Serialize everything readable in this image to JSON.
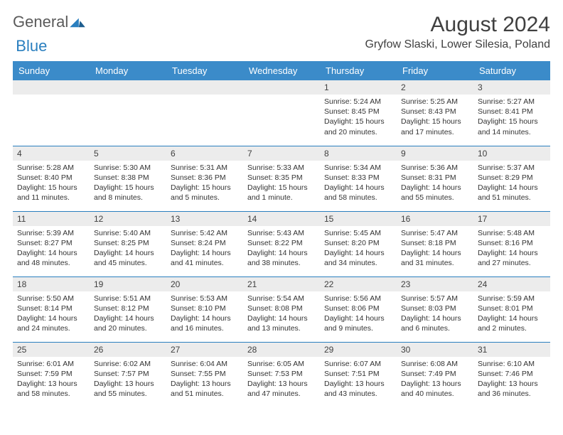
{
  "logo": {
    "general": "General",
    "blue": "Blue"
  },
  "title": "August 2024",
  "location": "Gryfow Slaski, Lower Silesia, Poland",
  "colors": {
    "header_bg": "#3b8bc9",
    "header_text": "#ffffff",
    "daynum_bg": "#ececec",
    "row_border": "#2a7fbf",
    "title_text": "#404040",
    "body_text": "#333333",
    "logo_general": "#5a5a5a",
    "logo_blue": "#2a7fbf"
  },
  "weekdays": [
    "Sunday",
    "Monday",
    "Tuesday",
    "Wednesday",
    "Thursday",
    "Friday",
    "Saturday"
  ],
  "weeks": [
    [
      {
        "day": "",
        "sunrise": "",
        "sunset": "",
        "daylight": ""
      },
      {
        "day": "",
        "sunrise": "",
        "sunset": "",
        "daylight": ""
      },
      {
        "day": "",
        "sunrise": "",
        "sunset": "",
        "daylight": ""
      },
      {
        "day": "",
        "sunrise": "",
        "sunset": "",
        "daylight": ""
      },
      {
        "day": "1",
        "sunrise": "Sunrise: 5:24 AM",
        "sunset": "Sunset: 8:45 PM",
        "daylight": "Daylight: 15 hours and 20 minutes."
      },
      {
        "day": "2",
        "sunrise": "Sunrise: 5:25 AM",
        "sunset": "Sunset: 8:43 PM",
        "daylight": "Daylight: 15 hours and 17 minutes."
      },
      {
        "day": "3",
        "sunrise": "Sunrise: 5:27 AM",
        "sunset": "Sunset: 8:41 PM",
        "daylight": "Daylight: 15 hours and 14 minutes."
      }
    ],
    [
      {
        "day": "4",
        "sunrise": "Sunrise: 5:28 AM",
        "sunset": "Sunset: 8:40 PM",
        "daylight": "Daylight: 15 hours and 11 minutes."
      },
      {
        "day": "5",
        "sunrise": "Sunrise: 5:30 AM",
        "sunset": "Sunset: 8:38 PM",
        "daylight": "Daylight: 15 hours and 8 minutes."
      },
      {
        "day": "6",
        "sunrise": "Sunrise: 5:31 AM",
        "sunset": "Sunset: 8:36 PM",
        "daylight": "Daylight: 15 hours and 5 minutes."
      },
      {
        "day": "7",
        "sunrise": "Sunrise: 5:33 AM",
        "sunset": "Sunset: 8:35 PM",
        "daylight": "Daylight: 15 hours and 1 minute."
      },
      {
        "day": "8",
        "sunrise": "Sunrise: 5:34 AM",
        "sunset": "Sunset: 8:33 PM",
        "daylight": "Daylight: 14 hours and 58 minutes."
      },
      {
        "day": "9",
        "sunrise": "Sunrise: 5:36 AM",
        "sunset": "Sunset: 8:31 PM",
        "daylight": "Daylight: 14 hours and 55 minutes."
      },
      {
        "day": "10",
        "sunrise": "Sunrise: 5:37 AM",
        "sunset": "Sunset: 8:29 PM",
        "daylight": "Daylight: 14 hours and 51 minutes."
      }
    ],
    [
      {
        "day": "11",
        "sunrise": "Sunrise: 5:39 AM",
        "sunset": "Sunset: 8:27 PM",
        "daylight": "Daylight: 14 hours and 48 minutes."
      },
      {
        "day": "12",
        "sunrise": "Sunrise: 5:40 AM",
        "sunset": "Sunset: 8:25 PM",
        "daylight": "Daylight: 14 hours and 45 minutes."
      },
      {
        "day": "13",
        "sunrise": "Sunrise: 5:42 AM",
        "sunset": "Sunset: 8:24 PM",
        "daylight": "Daylight: 14 hours and 41 minutes."
      },
      {
        "day": "14",
        "sunrise": "Sunrise: 5:43 AM",
        "sunset": "Sunset: 8:22 PM",
        "daylight": "Daylight: 14 hours and 38 minutes."
      },
      {
        "day": "15",
        "sunrise": "Sunrise: 5:45 AM",
        "sunset": "Sunset: 8:20 PM",
        "daylight": "Daylight: 14 hours and 34 minutes."
      },
      {
        "day": "16",
        "sunrise": "Sunrise: 5:47 AM",
        "sunset": "Sunset: 8:18 PM",
        "daylight": "Daylight: 14 hours and 31 minutes."
      },
      {
        "day": "17",
        "sunrise": "Sunrise: 5:48 AM",
        "sunset": "Sunset: 8:16 PM",
        "daylight": "Daylight: 14 hours and 27 minutes."
      }
    ],
    [
      {
        "day": "18",
        "sunrise": "Sunrise: 5:50 AM",
        "sunset": "Sunset: 8:14 PM",
        "daylight": "Daylight: 14 hours and 24 minutes."
      },
      {
        "day": "19",
        "sunrise": "Sunrise: 5:51 AM",
        "sunset": "Sunset: 8:12 PM",
        "daylight": "Daylight: 14 hours and 20 minutes."
      },
      {
        "day": "20",
        "sunrise": "Sunrise: 5:53 AM",
        "sunset": "Sunset: 8:10 PM",
        "daylight": "Daylight: 14 hours and 16 minutes."
      },
      {
        "day": "21",
        "sunrise": "Sunrise: 5:54 AM",
        "sunset": "Sunset: 8:08 PM",
        "daylight": "Daylight: 14 hours and 13 minutes."
      },
      {
        "day": "22",
        "sunrise": "Sunrise: 5:56 AM",
        "sunset": "Sunset: 8:06 PM",
        "daylight": "Daylight: 14 hours and 9 minutes."
      },
      {
        "day": "23",
        "sunrise": "Sunrise: 5:57 AM",
        "sunset": "Sunset: 8:03 PM",
        "daylight": "Daylight: 14 hours and 6 minutes."
      },
      {
        "day": "24",
        "sunrise": "Sunrise: 5:59 AM",
        "sunset": "Sunset: 8:01 PM",
        "daylight": "Daylight: 14 hours and 2 minutes."
      }
    ],
    [
      {
        "day": "25",
        "sunrise": "Sunrise: 6:01 AM",
        "sunset": "Sunset: 7:59 PM",
        "daylight": "Daylight: 13 hours and 58 minutes."
      },
      {
        "day": "26",
        "sunrise": "Sunrise: 6:02 AM",
        "sunset": "Sunset: 7:57 PM",
        "daylight": "Daylight: 13 hours and 55 minutes."
      },
      {
        "day": "27",
        "sunrise": "Sunrise: 6:04 AM",
        "sunset": "Sunset: 7:55 PM",
        "daylight": "Daylight: 13 hours and 51 minutes."
      },
      {
        "day": "28",
        "sunrise": "Sunrise: 6:05 AM",
        "sunset": "Sunset: 7:53 PM",
        "daylight": "Daylight: 13 hours and 47 minutes."
      },
      {
        "day": "29",
        "sunrise": "Sunrise: 6:07 AM",
        "sunset": "Sunset: 7:51 PM",
        "daylight": "Daylight: 13 hours and 43 minutes."
      },
      {
        "day": "30",
        "sunrise": "Sunrise: 6:08 AM",
        "sunset": "Sunset: 7:49 PM",
        "daylight": "Daylight: 13 hours and 40 minutes."
      },
      {
        "day": "31",
        "sunrise": "Sunrise: 6:10 AM",
        "sunset": "Sunset: 7:46 PM",
        "daylight": "Daylight: 13 hours and 36 minutes."
      }
    ]
  ]
}
